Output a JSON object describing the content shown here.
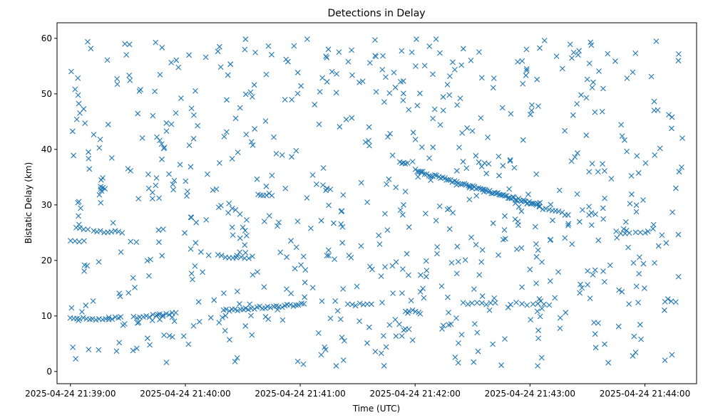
{
  "chart_data": {
    "type": "scatter",
    "title": "Detections in Delay",
    "xlabel": "Time (UTC)",
    "ylabel": "Bistatic Delay (km)",
    "grid": false,
    "marker": "x",
    "marker_color": "#1f77b4",
    "x_range": [
      "2025-04-24 21:38:53",
      "2025-04-24 21:44:27"
    ],
    "y_range": [
      -2.2,
      62.8
    ],
    "x_ticks": [
      "2025-04-24 21:39:00",
      "2025-04-24 21:40:00",
      "2025-04-24 21:41:00",
      "2025-04-24 21:42:00",
      "2025-04-24 21:43:00",
      "2025-04-24 21:44:00"
    ],
    "y_ticks": [
      0,
      10,
      20,
      30,
      40,
      50,
      60
    ],
    "tracks": [
      {
        "start": [
          "2025-04-24 21:39:00",
          9.4
        ],
        "end": [
          "2025-04-24 21:39:25",
          9.6
        ],
        "count": 16
      },
      {
        "start": [
          "2025-04-24 21:39:33",
          9.8
        ],
        "end": [
          "2025-04-24 21:39:55",
          10.4
        ],
        "count": 14
      },
      {
        "start": [
          "2025-04-24 21:40:20",
          11.0
        ],
        "end": [
          "2025-04-24 21:41:02",
          12.1
        ],
        "count": 30
      },
      {
        "start": [
          "2025-04-24 21:41:25",
          12.1
        ],
        "end": [
          "2025-04-24 21:41:37",
          12.0
        ],
        "count": 7
      },
      {
        "start": [
          "2025-04-24 21:41:52",
          37.8
        ],
        "end": [
          "2025-04-24 21:41:56",
          37.6
        ],
        "count": 5
      },
      {
        "start": [
          "2025-04-24 21:42:00",
          36.2
        ],
        "end": [
          "2025-04-24 21:42:36",
          32.6
        ],
        "count": 36
      },
      {
        "start": [
          "2025-04-24 21:42:36",
          32.6
        ],
        "end": [
          "2025-04-24 21:43:05",
          30.0
        ],
        "count": 38
      },
      {
        "start": [
          "2025-04-24 21:43:05",
          29.5
        ],
        "end": [
          "2025-04-24 21:43:20",
          28.2
        ],
        "count": 10
      },
      {
        "start": [
          "2025-04-24 21:39:12",
          25.3
        ],
        "end": [
          "2025-04-24 21:39:27",
          25.0
        ],
        "count": 9
      },
      {
        "start": [
          "2025-04-24 21:39:00",
          23.5
        ],
        "end": [
          "2025-04-24 21:39:07",
          23.4
        ],
        "count": 4
      },
      {
        "start": [
          "2025-04-24 21:39:03",
          25.8
        ],
        "end": [
          "2025-04-24 21:39:09",
          25.8
        ],
        "count": 4
      },
      {
        "start": [
          "2025-04-24 21:40:17",
          20.8
        ],
        "end": [
          "2025-04-24 21:40:35",
          20.5
        ],
        "count": 10
      },
      {
        "start": [
          "2025-04-24 21:40:38",
          32.0
        ],
        "end": [
          "2025-04-24 21:40:45",
          31.8
        ],
        "count": 6
      },
      {
        "start": [
          "2025-04-24 21:41:55",
          11.0
        ],
        "end": [
          "2025-04-24 21:42:02",
          10.9
        ],
        "count": 5
      },
      {
        "start": [
          "2025-04-24 21:42:25",
          12.3
        ],
        "end": [
          "2025-04-24 21:42:42",
          12.3
        ],
        "count": 8
      },
      {
        "start": [
          "2025-04-24 21:42:50",
          12.2
        ],
        "end": [
          "2025-04-24 21:43:10",
          12.1
        ],
        "count": 8
      },
      {
        "start": [
          "2025-04-24 21:43:45",
          25.1
        ],
        "end": [
          "2025-04-24 21:43:52",
          25.0
        ],
        "count": 4
      },
      {
        "start": [
          "2025-04-24 21:43:55",
          25.2
        ],
        "end": [
          "2025-04-24 21:44:00",
          25.0
        ],
        "count": 3
      }
    ],
    "scatter_seed": 20250424,
    "scatter_count": 720
  }
}
